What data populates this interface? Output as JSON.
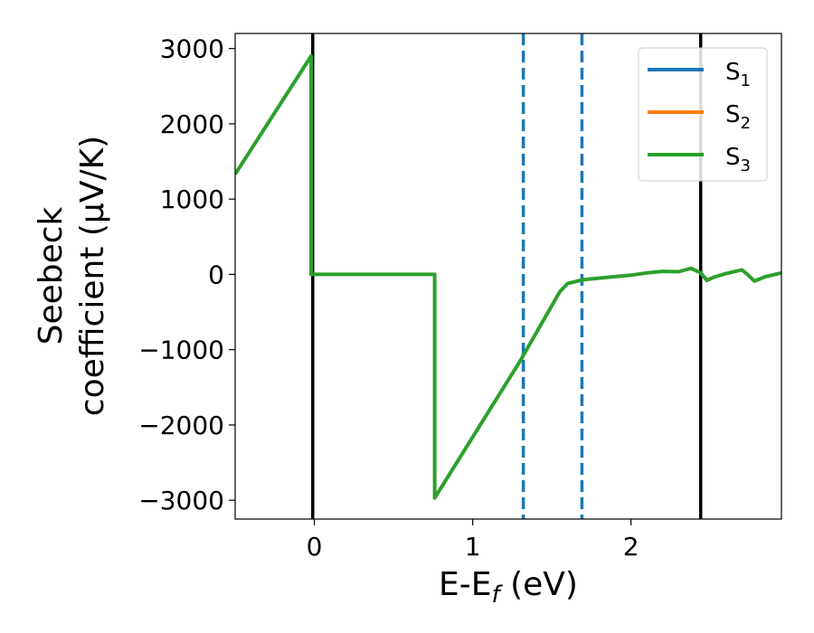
{
  "chart_data": {
    "type": "line",
    "xlabel": "E-E_f (eV)",
    "xlabel_main": "E-E",
    "xlabel_sub": "f",
    "xlabel_tail": " (eV)",
    "ylabel_line1": "Seebeck",
    "ylabel_line2": "coefficient  (μV/K)",
    "xlim": [
      -0.5,
      2.95
    ],
    "ylim": [
      -3250,
      3200
    ],
    "xticks": [
      0,
      1,
      2
    ],
    "xtick_labels": [
      "0",
      "1",
      "2"
    ],
    "yticks": [
      -3000,
      -2000,
      -1000,
      0,
      1000,
      2000,
      3000
    ],
    "ytick_labels": [
      "−3000",
      "−2000",
      "−1000",
      "0",
      "1000",
      "2000",
      "3000"
    ],
    "legend_position": "top-right",
    "series": [
      {
        "name": "S1",
        "label_main": "S",
        "label_sub": "1",
        "color": "#1f77b4",
        "x": [],
        "y": []
      },
      {
        "name": "S2",
        "label_main": "S",
        "label_sub": "2",
        "color": "#ff7f0e",
        "x": [],
        "y": []
      },
      {
        "name": "S3",
        "label_main": "S",
        "label_sub": "3",
        "color": "#2ca02c",
        "x": [
          -0.5,
          -0.02,
          -0.02,
          0.76,
          0.76,
          1.3,
          1.55,
          1.6,
          1.7,
          1.9,
          2.0,
          2.1,
          2.2,
          2.3,
          2.38,
          2.44,
          2.48,
          2.52,
          2.6,
          2.7,
          2.73,
          2.78,
          2.85,
          2.95
        ],
        "y": [
          1330,
          2900,
          0,
          0,
          -2970,
          -1150,
          -230,
          -120,
          -70,
          -30,
          -10,
          20,
          40,
          35,
          80,
          20,
          -80,
          -40,
          10,
          60,
          10,
          -90,
          -30,
          20
        ]
      }
    ],
    "vlines": [
      {
        "x": -0.01,
        "style": "solid",
        "color": "#000000"
      },
      {
        "x": 2.44,
        "style": "solid",
        "color": "#000000"
      },
      {
        "x": 1.32,
        "style": "dashed",
        "color": "#1f77b4"
      },
      {
        "x": 1.69,
        "style": "dashed",
        "color": "#1f77b4"
      }
    ],
    "grid": false
  }
}
